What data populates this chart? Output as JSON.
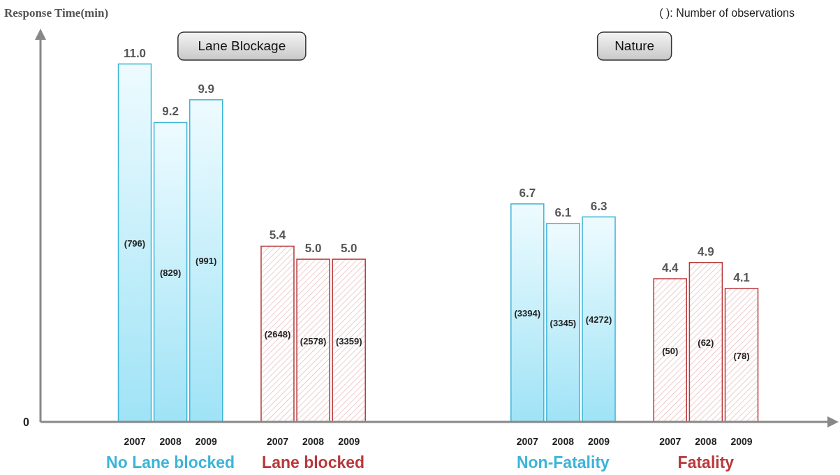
{
  "chart_data": {
    "type": "bar",
    "ylabel": "Response Time(min)",
    "categories": [
      "2007",
      "2008",
      "2009",
      null,
      "2007",
      "2008",
      "2009",
      null,
      null,
      null,
      null,
      "2007",
      "2008",
      "2009",
      null,
      "2007",
      "2008",
      "2009"
    ],
    "series": [
      {
        "color": "#3cb4d8",
        "values": [
          11.0,
          9.2,
          9.9,
          null,
          null,
          null,
          null,
          null,
          null,
          null,
          null,
          6.7,
          6.1,
          6.3,
          null,
          null,
          null,
          null
        ],
        "value_labels": [
          "11.0",
          "9.2",
          "9.9",
          null,
          null,
          null,
          null,
          null,
          null,
          null,
          null,
          "6.7",
          "6.1",
          "6.3",
          null,
          null,
          null,
          null
        ]
      },
      {
        "color": "#b8383b",
        "values": [
          null,
          null,
          null,
          null,
          5.4,
          5.0,
          5.0,
          null,
          null,
          null,
          null,
          null,
          null,
          null,
          null,
          4.4,
          4.9,
          4.1
        ],
        "value_labels": [
          null,
          null,
          null,
          null,
          "5.4",
          "5.0",
          "5.0",
          null,
          null,
          null,
          null,
          null,
          null,
          null,
          null,
          "4.4",
          "4.9",
          "4.1"
        ]
      }
    ],
    "ylim": [
      0,
      12
    ],
    "annotations": [
      "( ): Number of observations",
      "Lane Blockage",
      "Nature",
      "No Lane blocked",
      "Lane blocked",
      "Non-Fatality",
      "Fatality",
      "0",
      "(796)",
      "(829)",
      "(991)",
      "(2648)",
      "(2578)",
      "(3359)",
      "(3394)",
      "(3345)",
      "(4272)",
      "(50)",
      "(62)",
      "(78)"
    ]
  }
}
